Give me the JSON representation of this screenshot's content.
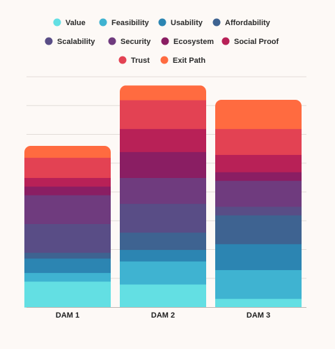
{
  "chart_data": {
    "type": "bar",
    "stacked": true,
    "categories": [
      "DAM 1",
      "DAM 2",
      "DAM 3"
    ],
    "ylim": [
      0,
      8
    ],
    "grid": true,
    "legend_position": "top",
    "series": [
      {
        "name": "Value",
        "color": "#63dfe3",
        "values": [
          0.9,
          0.8,
          0.3
        ]
      },
      {
        "name": "Feasibility",
        "color": "#3fb3d1",
        "values": [
          0.3,
          0.8,
          1.0
        ]
      },
      {
        "name": "Usability",
        "color": "#2c85b2",
        "values": [
          0.5,
          0.4,
          0.9
        ]
      },
      {
        "name": "Affordability",
        "color": "#3e6391",
        "values": [
          0.2,
          0.6,
          1.0
        ]
      },
      {
        "name": "Scalability",
        "color": "#594d86",
        "values": [
          1.0,
          1.0,
          0.3
        ]
      },
      {
        "name": "Security",
        "color": "#6f3b7e",
        "values": [
          1.0,
          0.9,
          0.9
        ]
      },
      {
        "name": "Ecosystem",
        "color": "#8a1e63",
        "values": [
          0.3,
          0.9,
          0.3
        ]
      },
      {
        "name": "Social Proof",
        "color": "#b82157",
        "values": [
          0.3,
          0.8,
          0.6
        ]
      },
      {
        "name": "Trust",
        "color": "#e34253",
        "values": [
          0.7,
          1.0,
          0.9
        ]
      },
      {
        "name": "Exit Path",
        "color": "#ff6b40",
        "values": [
          0.4,
          0.5,
          1.0
        ]
      }
    ]
  }
}
